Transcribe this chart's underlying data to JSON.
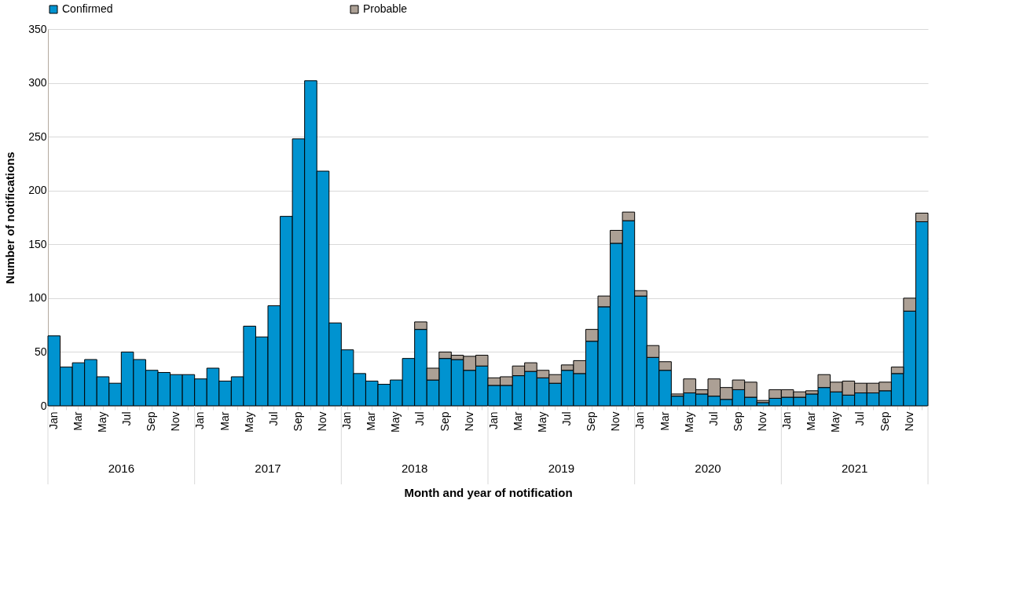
{
  "chart_data": {
    "type": "bar",
    "stacked": true,
    "xlabel": "Month and year of notification",
    "ylabel": "Number of notifications",
    "categories": [
      "Jan",
      null,
      "Mar",
      null,
      "May",
      null,
      "Jul",
      null,
      "Sep",
      null,
      "Nov",
      null,
      "Jan",
      null,
      "Mar",
      null,
      "May",
      null,
      "Jul",
      null,
      "Sep",
      null,
      "Nov",
      null,
      "Jan",
      null,
      "Mar",
      null,
      "May",
      null,
      "Jul",
      null,
      "Sep",
      null,
      "Nov",
      null,
      "Jan",
      null,
      "Mar",
      null,
      "May",
      null,
      "Jul",
      null,
      "Sep",
      null,
      "Nov",
      null,
      "Jan",
      null,
      "Mar",
      null,
      "May",
      null,
      "Jul",
      null,
      "Sep",
      null,
      "Nov",
      null,
      "Jan",
      null,
      "Mar",
      null,
      "May",
      null,
      "Jul",
      null,
      "Sep",
      null,
      "Nov",
      null
    ],
    "series": [
      {
        "name": "Confirmed",
        "color": "#0093d0",
        "values": [
          65,
          36,
          40,
          43,
          27,
          21,
          50,
          43,
          33,
          31,
          29,
          29,
          25,
          35,
          23,
          27,
          74,
          64,
          93,
          176,
          248,
          302,
          218,
          77,
          52,
          30,
          23,
          20,
          24,
          44,
          71,
          24,
          44,
          43,
          33,
          37,
          19,
          19,
          28,
          32,
          26,
          21,
          33,
          30,
          60,
          92,
          151,
          172,
          102,
          45,
          33,
          9,
          12,
          11,
          9,
          6,
          15,
          8,
          3,
          7,
          8,
          8,
          11,
          17,
          13,
          10,
          12,
          12,
          14,
          30,
          88,
          171
        ]
      },
      {
        "name": "Probable",
        "color": "#aca095",
        "values": [
          0,
          0,
          0,
          0,
          0,
          0,
          0,
          0,
          0,
          0,
          0,
          0,
          0,
          0,
          0,
          0,
          0,
          0,
          0,
          0,
          0,
          0,
          0,
          0,
          0,
          0,
          0,
          0,
          0,
          0,
          7,
          11,
          6,
          4,
          13,
          10,
          7,
          8,
          9,
          8,
          7,
          8,
          5,
          12,
          11,
          10,
          12,
          8,
          5,
          11,
          8,
          2,
          13,
          4,
          16,
          11,
          9,
          14,
          2,
          8,
          7,
          5,
          3,
          12,
          9,
          13,
          9,
          9,
          8,
          6,
          12,
          8
        ]
      }
    ],
    "ylim": [
      0,
      350
    ],
    "yticks": [
      0,
      50,
      100,
      150,
      200,
      250,
      300,
      350
    ],
    "grid": "y",
    "legend": "top",
    "annotations": [
      "2016",
      "2017",
      "2018",
      "2019",
      "2020",
      "2021"
    ]
  }
}
